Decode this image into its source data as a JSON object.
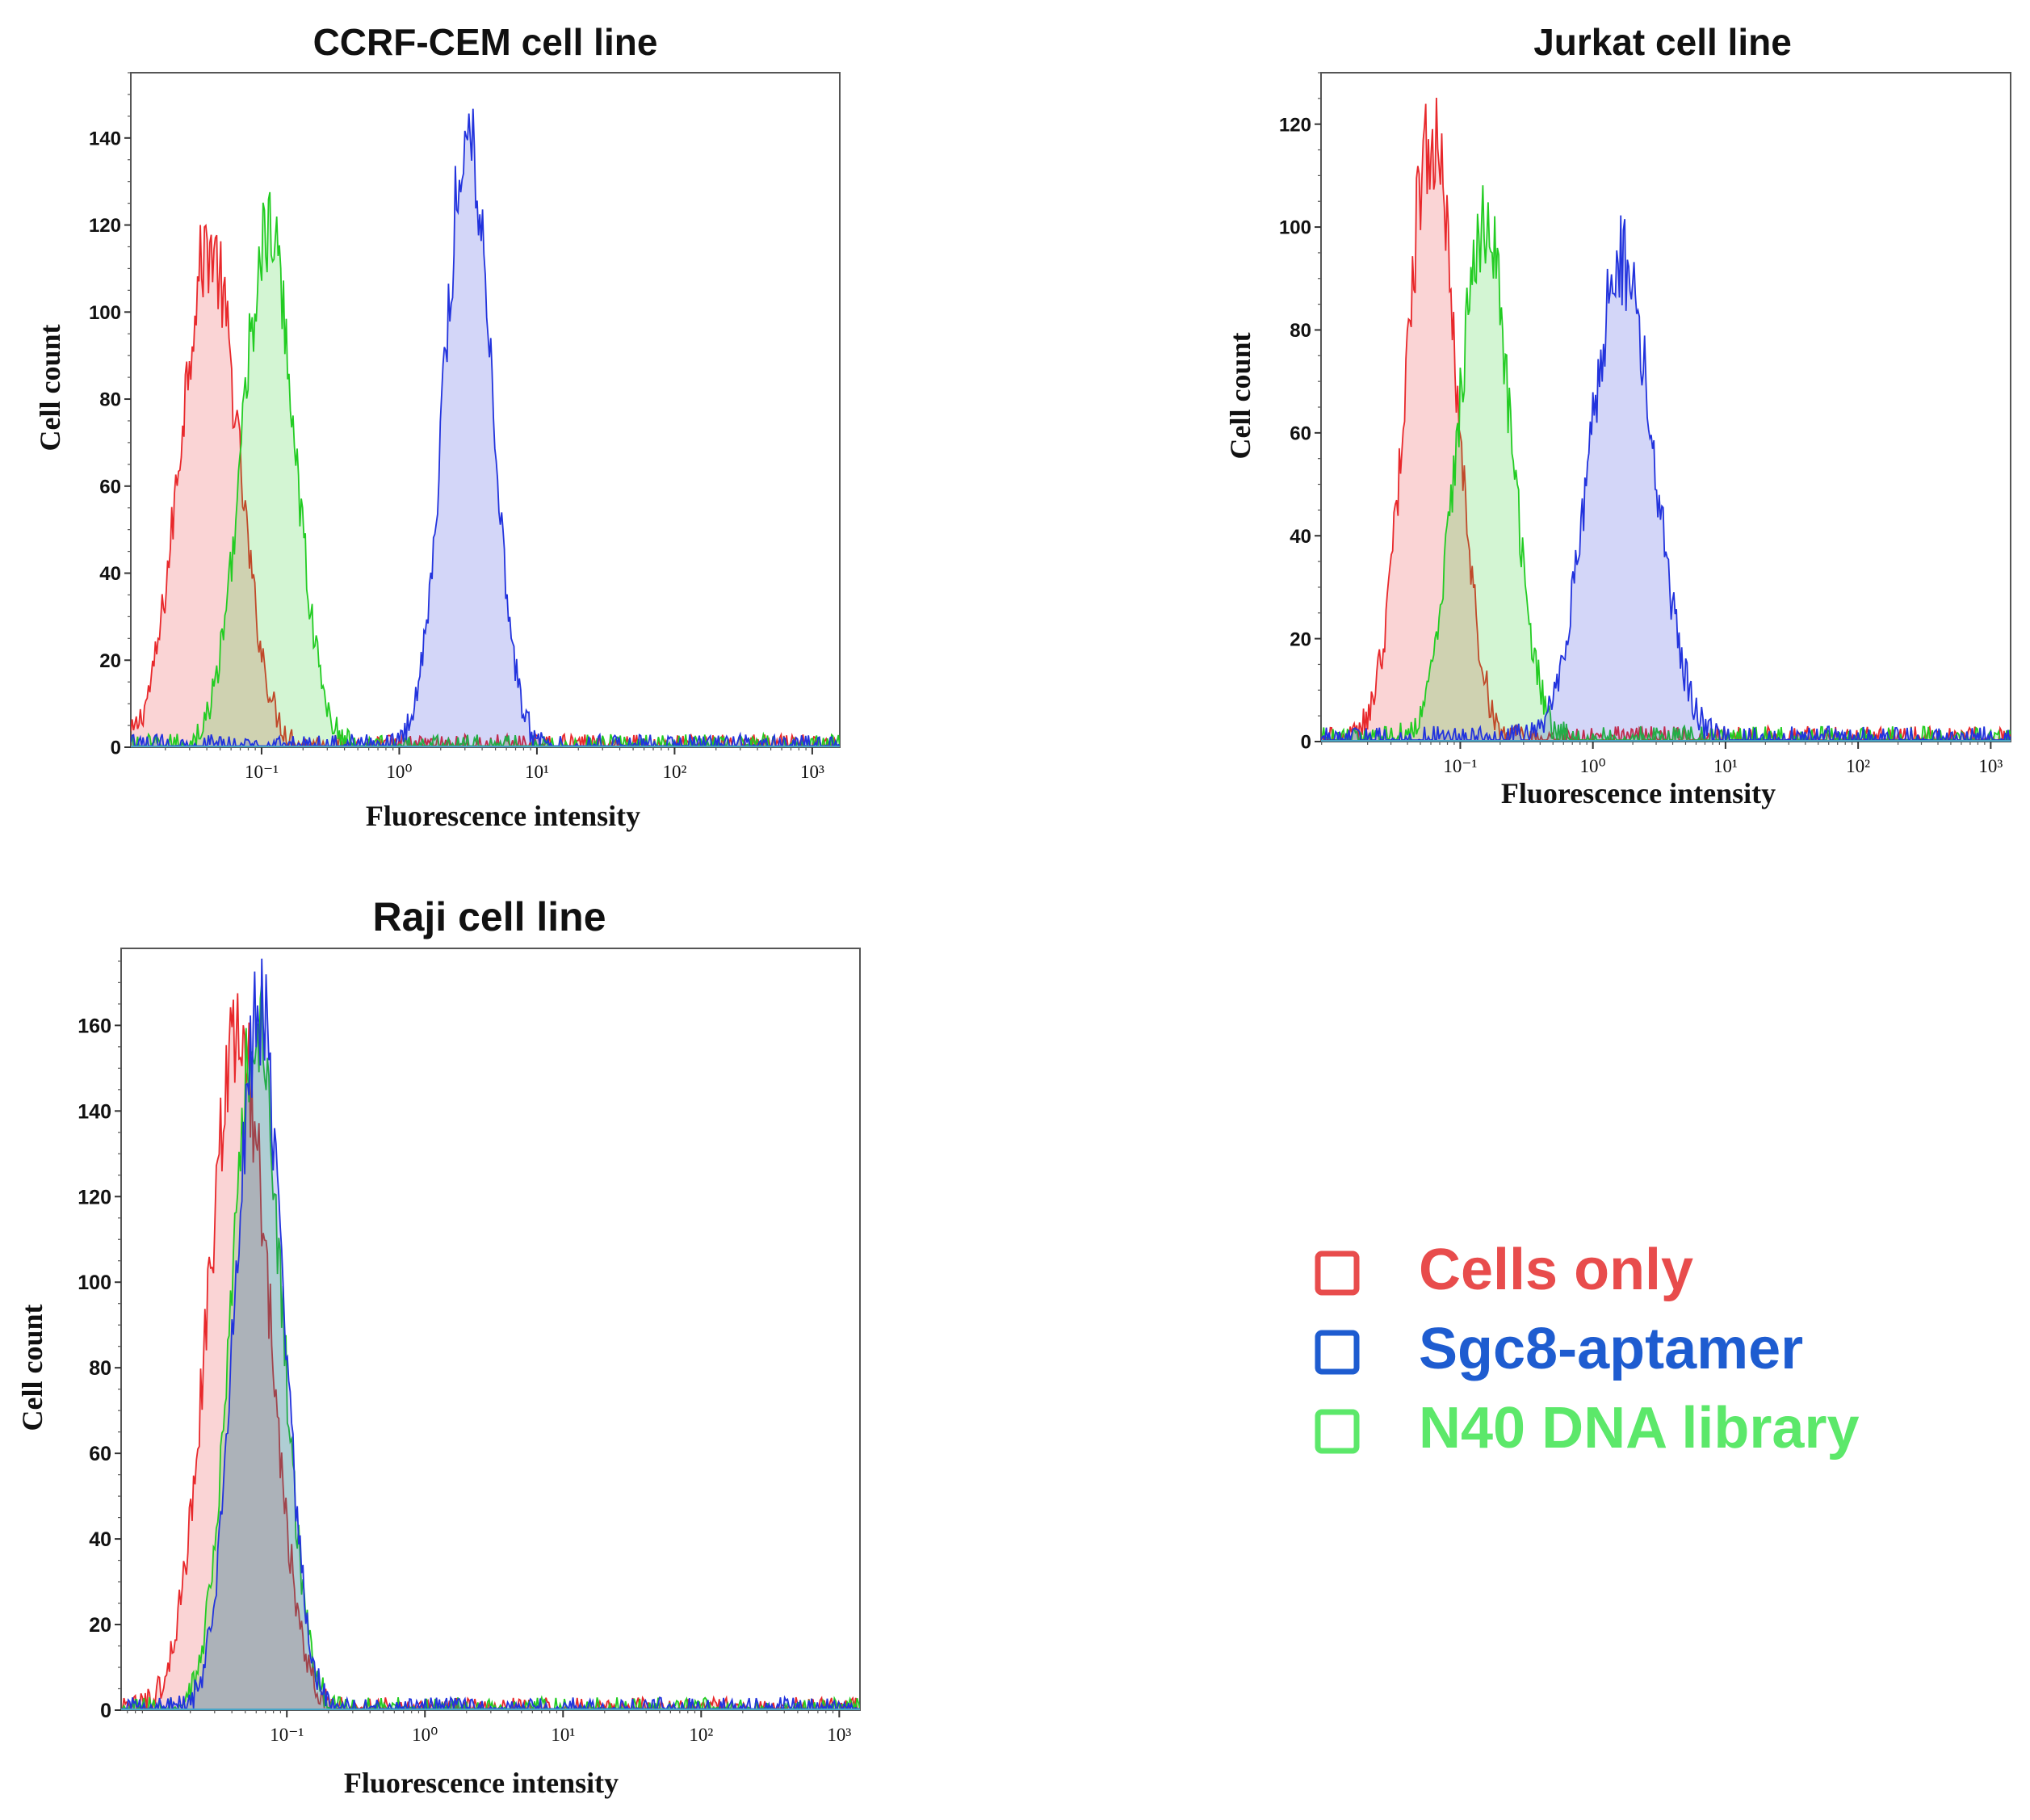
{
  "colors": {
    "cells_only": "#e8282b",
    "sgc8_aptamer": "#2233dd",
    "n40_library": "#22cc22",
    "overlap_rg": "#b9b58a",
    "overlap_gb": "#8fb7b8",
    "overlap_all": "#8e9aa0"
  },
  "legend": {
    "items": [
      {
        "label": "Cells only",
        "color": "#e84c4c"
      },
      {
        "label": "Sgc8-aptamer",
        "color": "#1e5cd0"
      },
      {
        "label": "N40 DNA library",
        "color": "#5ce86a"
      }
    ]
  },
  "chart_data": [
    {
      "type": "area",
      "title": "CCRF-CEM cell line",
      "xlabel": "Fluorescence intensity",
      "ylabel": "Cell count",
      "xscale": "log",
      "xlim_log10": [
        -1.95,
        3.2
      ],
      "ylim": [
        0,
        155
      ],
      "yticks": [
        0,
        20,
        40,
        60,
        80,
        100,
        120,
        140
      ],
      "xtick_exponents": [
        -1,
        0,
        1,
        2,
        3
      ],
      "xtick_labels": [
        "10⁻¹",
        "10⁰",
        "10¹",
        "10²",
        "10³"
      ],
      "series": [
        {
          "name": "Cells only",
          "peak_log10": -1.38,
          "peak_count": 115,
          "width": 0.21
        },
        {
          "name": "N40 DNA library",
          "peak_log10": -0.95,
          "peak_count": 118,
          "width": 0.19
        },
        {
          "name": "Sgc8-aptamer",
          "peak_log10": 0.5,
          "peak_count": 142,
          "width": 0.17
        }
      ]
    },
    {
      "type": "area",
      "title": "Jurkat cell line",
      "xlabel": "Fluorescence intensity",
      "ylabel": "Cell count",
      "xscale": "log",
      "xlim_log10": [
        -2.05,
        3.15
      ],
      "ylim": [
        0,
        130
      ],
      "yticks": [
        0,
        20,
        40,
        60,
        80,
        100,
        120
      ],
      "xtick_exponents": [
        -1,
        0,
        1,
        2,
        3
      ],
      "xtick_labels": [
        "10⁻¹",
        "10⁰",
        "10¹",
        "10²",
        "10³"
      ],
      "series": [
        {
          "name": "Cells only",
          "peak_log10": -1.22,
          "peak_count": 118,
          "width": 0.19
        },
        {
          "name": "N40 DNA library",
          "peak_log10": -0.82,
          "peak_count": 101,
          "width": 0.2
        },
        {
          "name": "Sgc8-aptamer",
          "peak_log10": 0.22,
          "peak_count": 93,
          "width": 0.24
        }
      ]
    },
    {
      "type": "area",
      "title": "Raji cell line",
      "xlabel": "Fluorescence intensity",
      "ylabel": "Cell count",
      "xscale": "log",
      "xlim_log10": [
        -2.2,
        3.15
      ],
      "ylim": [
        0,
        178
      ],
      "yticks": [
        0,
        20,
        40,
        60,
        80,
        100,
        120,
        140,
        160
      ],
      "xtick_exponents": [
        -1,
        0,
        1,
        2,
        3
      ],
      "xtick_labels": [
        "10⁻¹",
        "10⁰",
        "10¹",
        "10²",
        "10³"
      ],
      "series": [
        {
          "name": "Cells only",
          "peak_log10": -1.35,
          "peak_count": 158,
          "width": 0.22
        },
        {
          "name": "N40 DNA library",
          "peak_log10": -1.22,
          "peak_count": 160,
          "width": 0.18
        },
        {
          "name": "Sgc8-aptamer",
          "peak_log10": -1.2,
          "peak_count": 165,
          "width": 0.17
        }
      ]
    }
  ]
}
